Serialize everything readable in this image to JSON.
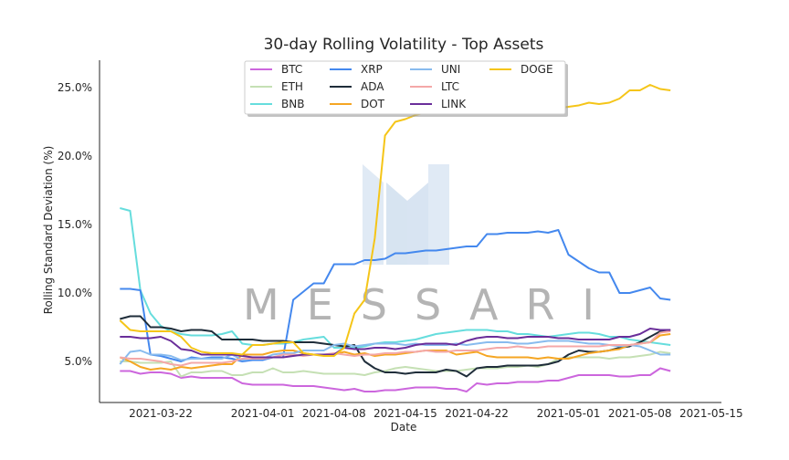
{
  "chart_data": {
    "type": "line",
    "title": "30-day Rolling Volatility - Top Assets",
    "xlabel": "Date",
    "ylabel": "Rolling Standard Deviation (%)",
    "x_start": "2021-03-18",
    "x_ticks": [
      "2021-03-22",
      "2021-04-01",
      "2021-04-08",
      "2021-04-15",
      "2021-04-22",
      "2021-05-01",
      "2021-05-08",
      "2021-05-15"
    ],
    "xlim": [
      "2021-03-16",
      "2021-05-16"
    ],
    "ylim": [
      2.0,
      27.0
    ],
    "y_ticks": [
      5.0,
      10.0,
      15.0,
      20.0,
      25.0
    ],
    "y_tick_labels": [
      "5.0%",
      "10.0%",
      "15.0%",
      "20.0%",
      "25.0%"
    ],
    "grid": false,
    "legend_position": "top-center",
    "watermark": "MESSARI",
    "series": [
      {
        "name": "BTC",
        "color": "#cc66dd",
        "values": [
          4.3,
          4.3,
          4.1,
          4.2,
          4.2,
          4.1,
          3.8,
          3.9,
          3.8,
          3.8,
          3.8,
          3.8,
          3.4,
          3.3,
          3.3,
          3.3,
          3.3,
          3.2,
          3.2,
          3.2,
          3.1,
          3.0,
          2.9,
          3.0,
          2.8,
          2.8,
          2.9,
          2.9,
          3.0,
          3.1,
          3.1,
          3.1,
          3.0,
          3.0,
          2.8,
          3.4,
          3.3,
          3.4,
          3.4,
          3.5,
          3.5,
          3.5,
          3.6,
          3.6,
          3.8,
          4.0,
          4.0,
          4.0,
          4.0,
          3.9,
          3.9,
          4.0,
          4.0,
          4.5,
          4.3
        ]
      },
      {
        "name": "ETH",
        "color": "#c5e0b4",
        "values": [
          5.0,
          5.0,
          4.9,
          4.9,
          4.9,
          5.0,
          3.9,
          4.2,
          4.2,
          4.3,
          4.3,
          4.0,
          4.0,
          4.2,
          4.2,
          4.5,
          4.2,
          4.2,
          4.3,
          4.2,
          4.1,
          4.1,
          4.1,
          4.1,
          4.0,
          4.2,
          4.3,
          4.5,
          4.6,
          4.5,
          4.4,
          4.3,
          4.3,
          4.3,
          4.4,
          4.5,
          4.5,
          4.5,
          4.6,
          4.6,
          4.7,
          4.6,
          4.8,
          5.2,
          5.3,
          5.3,
          5.3,
          5.3,
          5.2,
          5.3,
          5.3,
          5.4,
          5.5,
          5.7,
          5.6
        ]
      },
      {
        "name": "BNB",
        "color": "#66dddd",
        "values": [
          16.2,
          16.0,
          10.2,
          8.5,
          7.6,
          7.2,
          7.0,
          6.9,
          6.9,
          6.9,
          7.0,
          7.2,
          6.3,
          6.2,
          6.2,
          6.3,
          6.3,
          6.4,
          6.6,
          6.7,
          6.8,
          6.0,
          6.0,
          6.0,
          6.1,
          6.3,
          6.4,
          6.4,
          6.5,
          6.6,
          6.8,
          7.0,
          7.1,
          7.2,
          7.3,
          7.3,
          7.3,
          7.2,
          7.2,
          7.0,
          7.0,
          6.9,
          6.8,
          6.9,
          7.0,
          7.1,
          7.1,
          7.0,
          6.8,
          6.8,
          6.6,
          6.5,
          6.4,
          6.3,
          6.2
        ]
      },
      {
        "name": "XRP",
        "color": "#4488ee",
        "values": [
          10.3,
          10.3,
          10.2,
          5.5,
          5.4,
          5.2,
          5.0,
          5.3,
          5.2,
          5.3,
          5.3,
          5.2,
          5.0,
          5.1,
          5.1,
          5.3,
          5.3,
          9.5,
          10.1,
          10.7,
          10.7,
          12.1,
          12.1,
          12.1,
          12.4,
          12.4,
          12.5,
          12.9,
          12.9,
          13.0,
          13.1,
          13.1,
          13.2,
          13.3,
          13.4,
          13.4,
          14.3,
          14.3,
          14.4,
          14.4,
          14.4,
          14.5,
          14.4,
          14.6,
          12.8,
          12.3,
          11.8,
          11.5,
          11.5,
          10.0,
          10.0,
          10.2,
          10.4,
          9.6,
          9.5
        ]
      },
      {
        "name": "ADA",
        "color": "#1f2d3a",
        "values": [
          8.1,
          8.3,
          8.3,
          7.5,
          7.5,
          7.4,
          7.2,
          7.3,
          7.3,
          7.2,
          6.6,
          6.6,
          6.6,
          6.6,
          6.5,
          6.5,
          6.5,
          6.4,
          6.4,
          6.4,
          6.3,
          6.2,
          6.1,
          6.2,
          5.0,
          4.5,
          4.2,
          4.2,
          4.1,
          4.2,
          4.2,
          4.2,
          4.4,
          4.3,
          3.9,
          4.5,
          4.6,
          4.6,
          4.7,
          4.7,
          4.7,
          4.7,
          4.8,
          5.0,
          5.5,
          5.8,
          5.7,
          5.7,
          5.8,
          6.0,
          6.1,
          6.4,
          6.8,
          7.2,
          7.3
        ]
      },
      {
        "name": "DOT",
        "color": "#f5a623",
        "values": [
          5.3,
          5.0,
          4.6,
          4.4,
          4.5,
          4.4,
          4.6,
          4.5,
          4.6,
          4.7,
          4.8,
          4.8,
          5.5,
          5.5,
          5.5,
          5.7,
          5.8,
          5.8,
          5.6,
          5.5,
          5.5,
          5.5,
          5.7,
          5.5,
          5.6,
          5.4,
          5.5,
          5.5,
          5.6,
          5.7,
          5.8,
          5.8,
          5.8,
          5.5,
          5.6,
          5.7,
          5.4,
          5.3,
          5.3,
          5.3,
          5.3,
          5.2,
          5.3,
          5.2,
          5.2,
          5.4,
          5.6,
          5.7,
          5.8,
          5.9,
          6.2,
          6.3,
          6.4,
          6.9,
          7.0
        ]
      },
      {
        "name": "UNI",
        "color": "#88bbee",
        "values": [
          4.8,
          5.7,
          5.8,
          5.5,
          5.5,
          5.4,
          5.1,
          5.2,
          5.2,
          5.2,
          5.2,
          5.5,
          5.1,
          5.2,
          5.2,
          5.5,
          5.6,
          5.6,
          5.8,
          5.8,
          5.8,
          6.2,
          6.3,
          6.1,
          6.2,
          6.3,
          6.3,
          6.3,
          6.2,
          6.3,
          6.2,
          6.2,
          6.2,
          6.3,
          6.2,
          6.3,
          6.4,
          6.4,
          6.4,
          6.3,
          6.3,
          6.4,
          6.5,
          6.5,
          6.5,
          6.4,
          6.3,
          6.3,
          6.2,
          6.1,
          6.2,
          6.1,
          5.8,
          5.5,
          5.5
        ]
      },
      {
        "name": "LTC",
        "color": "#f4a8a8",
        "values": [
          5.3,
          5.2,
          5.2,
          5.1,
          5.0,
          4.8,
          4.7,
          4.9,
          4.9,
          4.9,
          4.9,
          5.0,
          5.2,
          5.2,
          5.2,
          5.3,
          5.5,
          5.5,
          5.4,
          5.5,
          5.5,
          5.6,
          5.5,
          5.4,
          5.5,
          5.5,
          5.6,
          5.6,
          5.7,
          5.7,
          5.8,
          5.7,
          5.7,
          5.8,
          5.8,
          5.8,
          5.9,
          6.0,
          6.0,
          6.1,
          6.0,
          6.0,
          6.1,
          6.1,
          6.1,
          6.1,
          6.1,
          6.1,
          6.2,
          6.2,
          6.2,
          6.3,
          6.4,
          7.1,
          7.2
        ]
      },
      {
        "name": "LINK",
        "color": "#6a2e9a",
        "values": [
          6.8,
          6.8,
          6.7,
          6.7,
          6.8,
          6.5,
          5.9,
          5.8,
          5.5,
          5.5,
          5.5,
          5.5,
          5.4,
          5.3,
          5.3,
          5.3,
          5.3,
          5.4,
          5.5,
          5.5,
          5.5,
          5.5,
          6.0,
          5.9,
          5.9,
          6.0,
          6.0,
          5.9,
          6.0,
          6.2,
          6.3,
          6.3,
          6.3,
          6.2,
          6.5,
          6.7,
          6.8,
          6.8,
          6.7,
          6.7,
          6.8,
          6.8,
          6.8,
          6.7,
          6.7,
          6.6,
          6.6,
          6.6,
          6.6,
          6.8,
          6.8,
          7.0,
          7.4,
          7.3,
          7.3
        ]
      },
      {
        "name": "DOGE",
        "color": "#f5c518",
        "values": [
          8.0,
          7.3,
          7.2,
          7.2,
          7.2,
          7.2,
          6.8,
          6.0,
          5.7,
          5.6,
          5.6,
          5.6,
          5.5,
          6.2,
          6.2,
          6.3,
          6.4,
          6.4,
          5.6,
          5.5,
          5.4,
          5.4,
          6.0,
          8.5,
          9.5,
          14.0,
          21.5,
          22.5,
          22.7,
          23.0,
          23.2,
          23.3,
          23.5,
          23.6,
          23.7,
          23.7,
          23.7,
          23.6,
          23.5,
          23.5,
          23.5,
          23.6,
          23.5,
          23.5,
          23.6,
          23.7,
          23.9,
          23.8,
          23.9,
          24.2,
          24.8,
          24.8,
          25.2,
          24.9,
          24.8
        ]
      }
    ]
  }
}
